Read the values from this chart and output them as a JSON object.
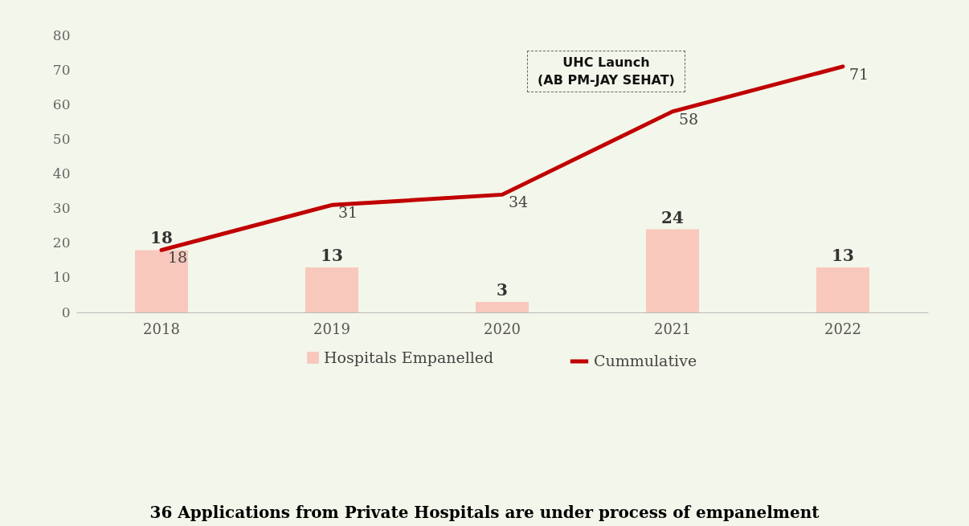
{
  "chart_data": {
    "type": "bar",
    "categories": [
      "2018",
      "2019",
      "2020",
      "2021",
      "2022"
    ],
    "series": [
      {
        "name": "Hospitals Empanelled",
        "color": "#f8c8bd",
        "values": [
          18,
          13,
          3,
          24,
          13
        ]
      },
      {
        "name": "Cummulative",
        "type": "line",
        "color": "#c00000",
        "values": [
          18,
          31,
          34,
          58,
          71
        ]
      }
    ],
    "ylim": [
      0,
      80
    ],
    "yticks": [
      0,
      10,
      20,
      30,
      40,
      50,
      60,
      70,
      80
    ],
    "grid": false,
    "legend": "bottom",
    "data_labels": true,
    "annotations": [
      "UHC Launch\n(AB PM-JAY SEHAT)",
      "36 Applications from Private Hospitals are under process of empanelment"
    ]
  }
}
